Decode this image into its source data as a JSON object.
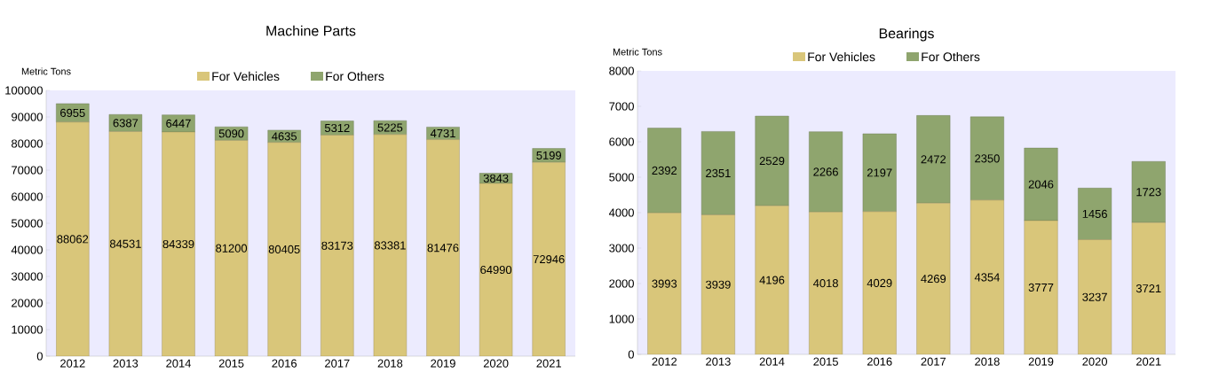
{
  "chart_data": [
    {
      "type": "bar",
      "title": "Machine Parts",
      "ylabel": "Metric Tons",
      "stacked": true,
      "data_labels": true,
      "legend": "top",
      "categories": [
        "2012",
        "2013",
        "2014",
        "2015",
        "2016",
        "2017",
        "2018",
        "2019",
        "2020",
        "2021"
      ],
      "series": [
        {
          "name": "For Vehicles",
          "color": "#d9c67a",
          "values": [
            88062,
            84531,
            84339,
            81200,
            80405,
            83173,
            83381,
            81476,
            64990,
            72946
          ]
        },
        {
          "name": "For Others",
          "color": "#8fa56e",
          "values": [
            6955,
            6387,
            6447,
            5090,
            4635,
            5312,
            5225,
            4731,
            3843,
            5199
          ]
        }
      ],
      "ylim": [
        0,
        100000
      ],
      "yticks": [
        0,
        10000,
        20000,
        30000,
        40000,
        50000,
        60000,
        70000,
        80000,
        90000,
        100000
      ]
    },
    {
      "type": "bar",
      "title": "Bearings",
      "ylabel": "Metric Tons",
      "stacked": true,
      "data_labels": true,
      "legend": "top",
      "categories": [
        "2012",
        "2013",
        "2014",
        "2015",
        "2016",
        "2017",
        "2018",
        "2019",
        "2020",
        "2021"
      ],
      "series": [
        {
          "name": "For Vehicles",
          "color": "#d9c67a",
          "values": [
            3993,
            3939,
            4196,
            4018,
            4029,
            4269,
            4354,
            3777,
            3237,
            3721
          ]
        },
        {
          "name": "For Others",
          "color": "#8fa56e",
          "values": [
            2392,
            2351,
            2529,
            2266,
            2197,
            2472,
            2350,
            2046,
            1456,
            1723
          ]
        }
      ],
      "ylim": [
        0,
        8000
      ],
      "yticks": [
        0,
        1000,
        2000,
        3000,
        4000,
        5000,
        6000,
        7000,
        8000
      ]
    }
  ]
}
